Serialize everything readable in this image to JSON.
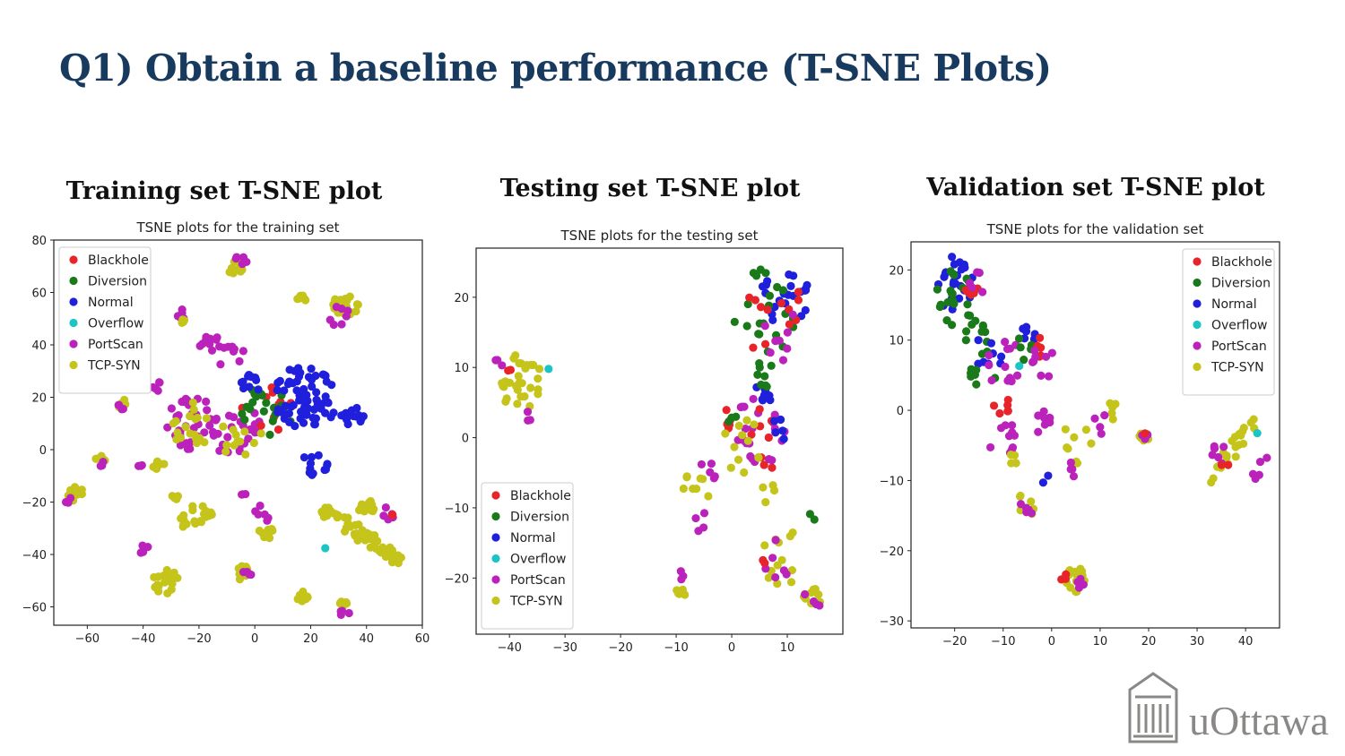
{
  "slide": {
    "title": "Q1) Obtain a baseline performance (T-SNE Plots)"
  },
  "panels": [
    {
      "heading": "Training set T-SNE plot"
    },
    {
      "heading": "Testing set T-SNE plot"
    },
    {
      "heading": "Validation set T-SNE plot"
    }
  ],
  "logo": {
    "text": "uOttawa",
    "color": "#8a8886"
  },
  "classes": [
    {
      "name": "Blackhole",
      "color": "#e8242b"
    },
    {
      "name": "Diversion",
      "color": "#1a7a1a"
    },
    {
      "name": "Normal",
      "color": "#1f1fdc"
    },
    {
      "name": "Overflow",
      "color": "#1cc4c4"
    },
    {
      "name": "PortScan",
      "color": "#bb22bb"
    },
    {
      "name": "TCP-SYN",
      "color": "#c5c41a"
    }
  ],
  "chart_data": [
    {
      "type": "scatter",
      "title": "TSNE plots for the training set",
      "xlim": [
        -72,
        60
      ],
      "ylim": [
        -67,
        80
      ],
      "xticks": [
        -60,
        -40,
        -20,
        0,
        20,
        40,
        60
      ],
      "yticks": [
        -60,
        -40,
        -20,
        0,
        20,
        40,
        60,
        80
      ],
      "legend": "top-left",
      "grid": false,
      "clusters": [
        {
          "cls": "TCP-SYN",
          "x": -7,
          "y": 70,
          "r": 3,
          "n": 14
        },
        {
          "cls": "PortScan",
          "x": -5,
          "y": 72,
          "r": 3,
          "n": 5
        },
        {
          "cls": "TCP-SYN",
          "x": 33,
          "y": 55,
          "r": 5,
          "n": 26
        },
        {
          "cls": "PortScan",
          "x": 30,
          "y": 51,
          "r": 4,
          "n": 7
        },
        {
          "cls": "TCP-SYN",
          "x": 17,
          "y": 57,
          "r": 2,
          "n": 6
        },
        {
          "cls": "PortScan",
          "x": -26,
          "y": 52,
          "r": 2,
          "n": 5
        },
        {
          "cls": "TCP-SYN",
          "x": -25,
          "y": 50,
          "r": 2,
          "n": 6
        },
        {
          "cls": "PortScan",
          "x": -16,
          "y": 40,
          "r": 4,
          "n": 10
        },
        {
          "cls": "PortScan",
          "x": -35,
          "y": 25,
          "r": 3,
          "n": 5
        },
        {
          "cls": "PortScan",
          "x": -8,
          "y": 35,
          "r": 5,
          "n": 8
        },
        {
          "cls": "PortScan",
          "x": -22,
          "y": 10,
          "r": 10,
          "n": 35
        },
        {
          "cls": "TCP-SYN",
          "x": -22,
          "y": 10,
          "r": 9,
          "n": 18
        },
        {
          "cls": "PortScan",
          "x": -8,
          "y": 8,
          "r": 10,
          "n": 25
        },
        {
          "cls": "TCP-SYN",
          "x": -5,
          "y": 5,
          "r": 8,
          "n": 12
        },
        {
          "cls": "Blackhole",
          "x": 5,
          "y": 15,
          "r": 10,
          "n": 12
        },
        {
          "cls": "Diversion",
          "x": 5,
          "y": 15,
          "r": 10,
          "n": 20
        },
        {
          "cls": "Normal",
          "x": 18,
          "y": 20,
          "r": 12,
          "n": 70
        },
        {
          "cls": "Normal",
          "x": 35,
          "y": 13,
          "r": 4,
          "n": 15
        },
        {
          "cls": "Normal",
          "x": 22,
          "y": -5,
          "r": 5,
          "n": 12
        },
        {
          "cls": "Normal",
          "x": -2,
          "y": 25,
          "r": 4,
          "n": 10
        },
        {
          "cls": "TCP-SYN",
          "x": -48,
          "y": 18,
          "r": 2,
          "n": 5
        },
        {
          "cls": "PortScan",
          "x": -48,
          "y": 16,
          "r": 2,
          "n": 4
        },
        {
          "cls": "TCP-SYN",
          "x": -55,
          "y": -3,
          "r": 2,
          "n": 5
        },
        {
          "cls": "PortScan",
          "x": -55,
          "y": -5,
          "r": 2,
          "n": 3
        },
        {
          "cls": "TCP-SYN",
          "x": -35,
          "y": -5,
          "r": 3,
          "n": 6
        },
        {
          "cls": "PortScan",
          "x": -42,
          "y": -5,
          "r": 2,
          "n": 3
        },
        {
          "cls": "TCP-SYN",
          "x": -64,
          "y": -17,
          "r": 3,
          "n": 12
        },
        {
          "cls": "PortScan",
          "x": -66,
          "y": -20,
          "r": 2,
          "n": 4
        },
        {
          "cls": "TCP-SYN",
          "x": -21,
          "y": -26,
          "r": 6,
          "n": 20
        },
        {
          "cls": "TCP-SYN",
          "x": -28,
          "y": -17,
          "r": 2,
          "n": 4
        },
        {
          "cls": "PortScan",
          "x": -4,
          "y": -17,
          "r": 2,
          "n": 3
        },
        {
          "cls": "TCP-SYN",
          "x": 4,
          "y": -32,
          "r": 3,
          "n": 10
        },
        {
          "cls": "PortScan",
          "x": 3,
          "y": -25,
          "r": 4,
          "n": 6
        },
        {
          "cls": "TCP-SYN",
          "x": -4,
          "y": -47,
          "r": 3,
          "n": 12
        },
        {
          "cls": "PortScan",
          "x": -3,
          "y": -47,
          "r": 2,
          "n": 4
        },
        {
          "cls": "TCP-SYN",
          "x": -32,
          "y": -50,
          "r": 5,
          "n": 18
        },
        {
          "cls": "PortScan",
          "x": -40,
          "y": -38,
          "r": 2,
          "n": 5
        },
        {
          "cls": "TCP-SYN",
          "x": 17,
          "y": -56,
          "r": 2,
          "n": 8
        },
        {
          "cls": "TCP-SYN",
          "x": 32,
          "y": -58,
          "r": 2,
          "n": 8
        },
        {
          "cls": "PortScan",
          "x": 32,
          "y": -62,
          "r": 2,
          "n": 4
        },
        {
          "cls": "TCP-SYN",
          "x": 38,
          "y": -32,
          "r": 5,
          "n": 60,
          "dx": 14,
          "dy": -10
        },
        {
          "cls": "TCP-SYN",
          "x": 40,
          "y": -22,
          "r": 3,
          "n": 15
        },
        {
          "cls": "PortScan",
          "x": 47,
          "y": -25,
          "r": 3,
          "n": 5
        },
        {
          "cls": "Blackhole",
          "x": 49,
          "y": -25,
          "r": 1,
          "n": 2
        },
        {
          "cls": "Overflow",
          "x": 26,
          "y": -38,
          "r": 1,
          "n": 1
        }
      ]
    },
    {
      "type": "scatter",
      "title": "TSNE plots for the testing set",
      "xlim": [
        -46,
        20
      ],
      "ylim": [
        -28,
        27
      ],
      "xticks": [
        -40,
        -30,
        -20,
        -10,
        0,
        10
      ],
      "yticks": [
        -20,
        -10,
        0,
        10,
        20
      ],
      "legend": "bottom-left",
      "grid": false,
      "clusters": [
        {
          "cls": "TCP-SYN",
          "x": -38,
          "y": 8,
          "r": 4,
          "n": 30
        },
        {
          "cls": "PortScan",
          "x": -42,
          "y": 11,
          "r": 1,
          "n": 3
        },
        {
          "cls": "Blackhole",
          "x": -40,
          "y": 10,
          "r": 1,
          "n": 2
        },
        {
          "cls": "PortScan",
          "x": -37,
          "y": 3,
          "r": 1,
          "n": 3
        },
        {
          "cls": "Overflow",
          "x": -33,
          "y": 10,
          "r": 0.5,
          "n": 1
        },
        {
          "cls": "Normal",
          "x": 9,
          "y": 20,
          "r": 5,
          "n": 25
        },
        {
          "cls": "Diversion",
          "x": 6,
          "y": 18,
          "r": 6,
          "n": 22
        },
        {
          "cls": "Blackhole",
          "x": 8,
          "y": 17,
          "r": 6,
          "n": 12
        },
        {
          "cls": "PortScan",
          "x": 8,
          "y": 15,
          "r": 5,
          "n": 8
        },
        {
          "cls": "Normal",
          "x": 6,
          "y": 7,
          "r": 2,
          "n": 8
        },
        {
          "cls": "Diversion",
          "x": 6,
          "y": 9,
          "r": 2,
          "n": 8
        },
        {
          "cls": "Blackhole",
          "x": -1,
          "y": 3,
          "r": 2,
          "n": 5
        },
        {
          "cls": "Diversion",
          "x": 0,
          "y": 3,
          "r": 1,
          "n": 3
        },
        {
          "cls": "PortScan",
          "x": 5,
          "y": 1,
          "r": 5,
          "n": 25
        },
        {
          "cls": "Blackhole",
          "x": 6,
          "y": 0,
          "r": 5,
          "n": 8
        },
        {
          "cls": "Normal",
          "x": 9,
          "y": 1,
          "r": 2,
          "n": 5
        },
        {
          "cls": "TCP-SYN",
          "x": 2,
          "y": -2,
          "r": 5,
          "n": 12
        },
        {
          "cls": "PortScan",
          "x": -4,
          "y": -5,
          "r": 2,
          "n": 5
        },
        {
          "cls": "TCP-SYN",
          "x": -7,
          "y": -8,
          "r": 3,
          "n": 8
        },
        {
          "cls": "PortScan",
          "x": -6,
          "y": -12,
          "r": 2,
          "n": 4
        },
        {
          "cls": "TCP-SYN",
          "x": 6,
          "y": -8,
          "r": 2,
          "n": 4
        },
        {
          "cls": "TCP-SYN",
          "x": -9,
          "y": -22,
          "r": 1,
          "n": 8
        },
        {
          "cls": "PortScan",
          "x": -9,
          "y": -20,
          "r": 1,
          "n": 3
        },
        {
          "cls": "TCP-SYN",
          "x": 9,
          "y": -17,
          "r": 4,
          "n": 12
        },
        {
          "cls": "PortScan",
          "x": 8,
          "y": -16,
          "r": 4,
          "n": 6
        },
        {
          "cls": "Blackhole",
          "x": 6,
          "y": -18,
          "r": 1,
          "n": 2
        },
        {
          "cls": "TCP-SYN",
          "x": 14,
          "y": -23,
          "r": 2,
          "n": 10
        },
        {
          "cls": "PortScan",
          "x": 15,
          "y": -23,
          "r": 2,
          "n": 4
        },
        {
          "cls": "Diversion",
          "x": 15,
          "y": -11,
          "r": 1,
          "n": 2
        }
      ]
    },
    {
      "type": "scatter",
      "title": "TSNE plots for the validation set",
      "xlim": [
        -29,
        47
      ],
      "ylim": [
        -31,
        24
      ],
      "xticks": [
        -20,
        -10,
        0,
        10,
        20,
        30,
        40
      ],
      "yticks": [
        -30,
        -20,
        -10,
        0,
        10,
        20
      ],
      "legend": "top-right",
      "grid": false,
      "clusters": [
        {
          "cls": "Normal",
          "x": -20,
          "y": 18,
          "r": 4,
          "n": 30
        },
        {
          "cls": "Diversion",
          "x": -20,
          "y": 16,
          "r": 4,
          "n": 18
        },
        {
          "cls": "Blackhole",
          "x": -16,
          "y": 17,
          "r": 2,
          "n": 6
        },
        {
          "cls": "PortScan",
          "x": -15,
          "y": 18,
          "r": 2,
          "n": 5
        },
        {
          "cls": "Diversion",
          "x": -16,
          "y": 11,
          "r": 3,
          "n": 10
        },
        {
          "cls": "Normal",
          "x": -13,
          "y": 8,
          "r": 3,
          "n": 8
        },
        {
          "cls": "Diversion",
          "x": -14,
          "y": 6,
          "r": 3,
          "n": 10
        },
        {
          "cls": "PortScan",
          "x": -10,
          "y": 7,
          "r": 4,
          "n": 12
        },
        {
          "cls": "Normal",
          "x": -5,
          "y": 10,
          "r": 2,
          "n": 8
        },
        {
          "cls": "Diversion",
          "x": -6,
          "y": 9,
          "r": 2,
          "n": 5
        },
        {
          "cls": "Blackhole",
          "x": -2,
          "y": 9,
          "r": 2,
          "n": 5
        },
        {
          "cls": "PortScan",
          "x": -2,
          "y": 7,
          "r": 3,
          "n": 8
        },
        {
          "cls": "Blackhole",
          "x": -10,
          "y": 0,
          "r": 2,
          "n": 6
        },
        {
          "cls": "PortScan",
          "x": -10,
          "y": -4,
          "r": 3,
          "n": 10
        },
        {
          "cls": "PortScan",
          "x": -2,
          "y": -2,
          "r": 2,
          "n": 8
        },
        {
          "cls": "TCP-SYN",
          "x": -8,
          "y": -7,
          "r": 1,
          "n": 4
        },
        {
          "cls": "Overflow",
          "x": -7,
          "y": 6,
          "r": 0.5,
          "n": 1
        },
        {
          "cls": "TCP-SYN",
          "x": -5,
          "y": -13,
          "r": 2,
          "n": 6
        },
        {
          "cls": "PortScan",
          "x": -5,
          "y": -13,
          "r": 2,
          "n": 5
        },
        {
          "cls": "Normal",
          "x": -1,
          "y": -10,
          "r": 1,
          "n": 2
        },
        {
          "cls": "TCP-SYN",
          "x": 5,
          "y": -5,
          "r": 4,
          "n": 8
        },
        {
          "cls": "PortScan",
          "x": 4,
          "y": -9,
          "r": 2,
          "n": 4
        },
        {
          "cls": "TCP-SYN",
          "x": 12,
          "y": 0,
          "r": 2,
          "n": 5
        },
        {
          "cls": "PortScan",
          "x": 10,
          "y": -2,
          "r": 2,
          "n": 4
        },
        {
          "cls": "TCP-SYN",
          "x": 19,
          "y": -4,
          "r": 1,
          "n": 6
        },
        {
          "cls": "PortScan",
          "x": 19,
          "y": -4,
          "r": 1,
          "n": 3
        },
        {
          "cls": "Blackhole",
          "x": 19,
          "y": -3,
          "r": 0.5,
          "n": 1
        },
        {
          "cls": "TCP-SYN",
          "x": 5,
          "y": -24,
          "r": 2,
          "n": 14
        },
        {
          "cls": "Blackhole",
          "x": 3,
          "y": -24,
          "r": 1,
          "n": 3
        },
        {
          "cls": "PortScan",
          "x": 6,
          "y": -25,
          "r": 1,
          "n": 4
        },
        {
          "cls": "TCP-SYN",
          "x": 37,
          "y": -6,
          "r": 3,
          "n": 22,
          "dx": 4,
          "dy": 4
        },
        {
          "cls": "PortScan",
          "x": 34,
          "y": -6,
          "r": 2,
          "n": 6
        },
        {
          "cls": "PortScan",
          "x": 43,
          "y": -8,
          "r": 2,
          "n": 5
        },
        {
          "cls": "Blackhole",
          "x": 36,
          "y": -8,
          "r": 1,
          "n": 2
        },
        {
          "cls": "Overflow",
          "x": 42,
          "y": -3,
          "r": 0.5,
          "n": 1
        }
      ]
    }
  ]
}
